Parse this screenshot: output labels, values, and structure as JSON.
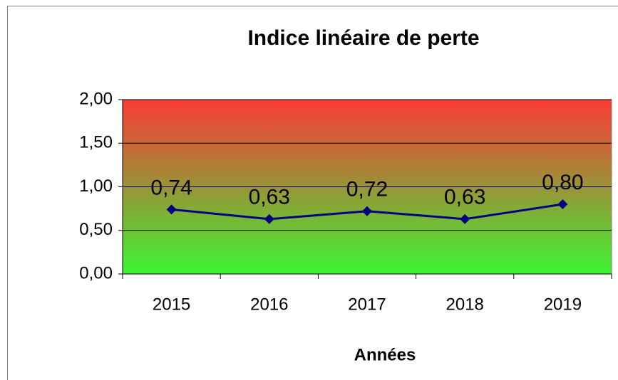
{
  "chart_data": {
    "type": "line",
    "title": "Indice linéaire de perte",
    "x_label": "Années",
    "categories": [
      "2015",
      "2016",
      "2017",
      "2018",
      "2019"
    ],
    "series": [
      {
        "name": "Indice linéaire de perte",
        "color": "#000080",
        "values": [
          0.74,
          0.63,
          0.72,
          0.63,
          0.8
        ],
        "value_labels": [
          "0,74",
          "0,63",
          "0,72",
          "0,63",
          "0,80"
        ]
      }
    ],
    "ylim": [
      0,
      2
    ],
    "yticks": [
      {
        "value": 0,
        "label": "0,00"
      },
      {
        "value": 0.5,
        "label": "0,50"
      },
      {
        "value": 1,
        "label": "1,00"
      },
      {
        "value": 1.5,
        "label": "1,50"
      },
      {
        "value": 2,
        "label": "2,00"
      }
    ],
    "grid": true
  }
}
